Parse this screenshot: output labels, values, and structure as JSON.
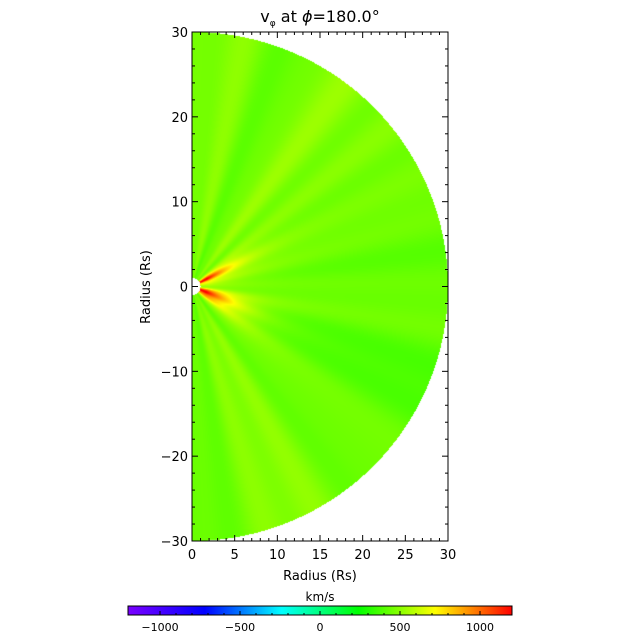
{
  "chart_data": {
    "type": "heatmap",
    "title": {
      "main": "v",
      "subscript": "φ",
      "mid": " at ",
      "phi": "ϕ",
      "value": "=180.0°"
    },
    "xlabel": "Radius (Rs)",
    "ylabel": "Radius (Rs)",
    "xlim": [
      0,
      30
    ],
    "ylim": [
      -30,
      30
    ],
    "x_ticks": [
      "0",
      "5",
      "10",
      "15",
      "20",
      "25",
      "30"
    ],
    "y_ticks": [
      "30",
      "20",
      "10",
      "0",
      "−10",
      "−20",
      "−30"
    ],
    "domain": "half-disk, inner radius 1 Rs, outer radius 30 Rs",
    "field_range": [
      -1200,
      1200
    ],
    "features": [
      {
        "desc": "strong positive lobe above equator",
        "value": 1150,
        "polar_angle_deg": 62
      },
      {
        "desc": "strong positive lobe below equator",
        "value": 1150,
        "polar_angle_deg": 110
      },
      {
        "desc": "moderate yellow streaks",
        "value": 750
      },
      {
        "desc": "background",
        "value": 450
      }
    ],
    "colorbar": {
      "label": "km/s",
      "ticks": [
        "−1000",
        "−500",
        "0",
        "500",
        "1000"
      ],
      "tick_values": [
        -1000,
        -500,
        0,
        500,
        1000
      ],
      "colors": [
        "#7a00ff",
        "#0000ff",
        "#00ffff",
        "#00ff00",
        "#ffff00",
        "#ff0000"
      ]
    },
    "grid": false
  }
}
